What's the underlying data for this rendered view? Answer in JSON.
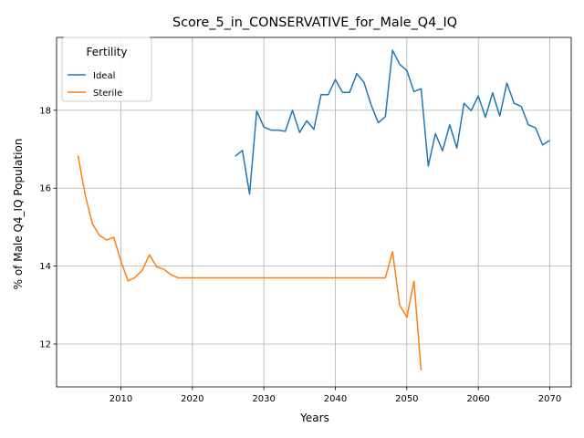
{
  "chart_data": {
    "type": "line",
    "title": "Score_5_in_CONSERVATIVE_for_Male_Q4_IQ",
    "xlabel": "Years",
    "ylabel": "% of Male Q4_IQ Population",
    "xlim": [
      2001,
      2073
    ],
    "ylim": [
      10.9,
      19.87
    ],
    "xticks": [
      2010,
      2020,
      2030,
      2040,
      2050,
      2060,
      2070
    ],
    "yticks": [
      12,
      14,
      16,
      18
    ],
    "grid": true,
    "legend": {
      "title": "Fertility",
      "position": "top-left"
    },
    "series": [
      {
        "name": "Ideal",
        "color": "#1f77b4",
        "x": [
          2026,
          2027,
          2028,
          2029,
          2030,
          2031,
          2032,
          2033,
          2034,
          2035,
          2036,
          2037,
          2038,
          2039,
          2040,
          2041,
          2042,
          2043,
          2044,
          2045,
          2046,
          2047,
          2048,
          2049,
          2050,
          2051,
          2052,
          2053,
          2054,
          2055,
          2056,
          2057,
          2058,
          2059,
          2060,
          2061,
          2062,
          2063,
          2064,
          2065,
          2066,
          2067,
          2068,
          2069,
          2070
        ],
        "y": [
          16.82,
          16.97,
          15.85,
          17.98,
          17.57,
          17.49,
          17.49,
          17.46,
          18.0,
          17.43,
          17.73,
          17.51,
          18.4,
          18.4,
          18.79,
          18.46,
          18.46,
          18.94,
          18.72,
          18.14,
          17.68,
          17.84,
          19.54,
          19.18,
          19.02,
          18.48,
          18.55,
          16.57,
          17.4,
          16.96,
          17.63,
          17.03,
          18.18,
          17.99,
          18.37,
          17.82,
          18.45,
          17.85,
          18.7,
          18.18,
          18.1,
          17.63,
          17.55,
          17.11,
          17.23
        ]
      },
      {
        "name": "Sterile",
        "color": "#ff7f0e",
        "x": [
          2004,
          2005,
          2006,
          2007,
          2008,
          2009,
          2010,
          2011,
          2012,
          2013,
          2014,
          2015,
          2016,
          2017,
          2018,
          2019,
          2020,
          2021,
          2022,
          2023,
          2024,
          2025,
          2026,
          2027,
          2028,
          2029,
          2030,
          2031,
          2032,
          2033,
          2034,
          2035,
          2036,
          2037,
          2038,
          2039,
          2040,
          2041,
          2042,
          2043,
          2044,
          2045,
          2046,
          2047,
          2048,
          2049,
          2050,
          2051,
          2052
        ],
        "y": [
          16.84,
          15.83,
          15.09,
          14.79,
          14.67,
          14.74,
          14.13,
          13.62,
          13.71,
          13.9,
          14.29,
          13.98,
          13.92,
          13.78,
          13.7,
          13.7,
          13.7,
          13.7,
          13.7,
          13.7,
          13.7,
          13.7,
          13.7,
          13.7,
          13.7,
          13.7,
          13.7,
          13.7,
          13.7,
          13.7,
          13.7,
          13.7,
          13.7,
          13.7,
          13.7,
          13.7,
          13.7,
          13.7,
          13.7,
          13.7,
          13.7,
          13.7,
          13.7,
          13.7,
          14.37,
          13.0,
          12.69,
          13.61,
          11.32
        ]
      }
    ]
  }
}
